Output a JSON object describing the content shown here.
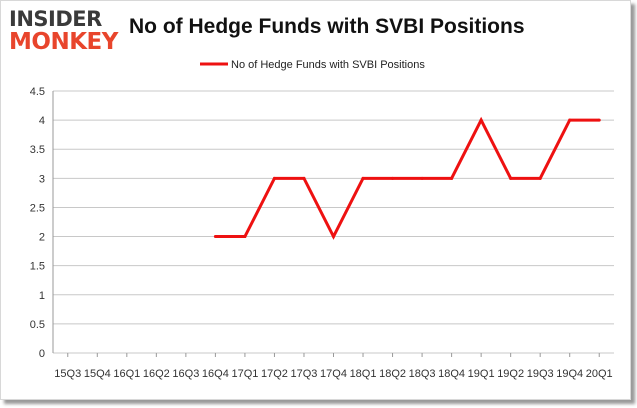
{
  "logo": {
    "line1": "INSIDER",
    "line2": "MONKEY"
  },
  "chart_data": {
    "type": "line",
    "title": "No of Hedge Funds with SVBI Positions",
    "categories": [
      "15Q3",
      "15Q4",
      "16Q1",
      "16Q2",
      "16Q3",
      "16Q4",
      "17Q1",
      "17Q2",
      "17Q3",
      "17Q4",
      "18Q1",
      "18Q2",
      "18Q3",
      "18Q4",
      "19Q1",
      "19Q2",
      "19Q3",
      "19Q4",
      "20Q1"
    ],
    "series": [
      {
        "name": "No of Hedge Funds with SVBI Positions",
        "values": [
          null,
          null,
          null,
          null,
          null,
          2,
          2,
          3,
          3,
          2,
          3,
          3,
          3,
          3,
          4,
          3,
          3,
          4,
          4
        ]
      }
    ],
    "ylim": [
      0,
      4.5
    ],
    "yticks": [
      0,
      0.5,
      1,
      1.5,
      2,
      2.5,
      3,
      3.5,
      4,
      4.5
    ],
    "grid": true,
    "legend": "top-center",
    "colors": {
      "line": "#ee1111",
      "grid": "#c8c8c8"
    }
  }
}
